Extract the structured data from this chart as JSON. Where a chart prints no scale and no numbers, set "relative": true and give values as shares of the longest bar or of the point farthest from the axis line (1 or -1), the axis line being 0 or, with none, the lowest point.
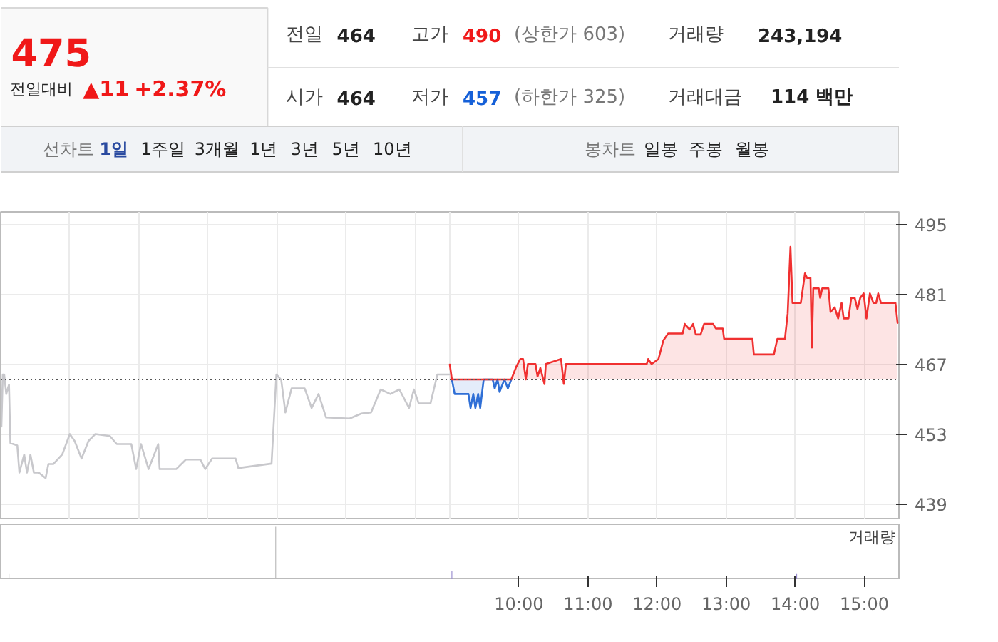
{
  "chart_data": [
    {
      "type": "line",
      "annotations": [
        "475",
        "전일대비",
        "▲11",
        "+2.37%",
        "전일",
        "464",
        "고가",
        "490",
        "(상한가 603)",
        "거래량",
        "243,194",
        "시가",
        "464",
        "저가",
        "457",
        "(하한가 325)",
        "거래대금",
        "114 백만",
        "선차트",
        "1일",
        "1주일",
        "3개월",
        "1년",
        "3년",
        "5년",
        "10년",
        "봉차트",
        "일봉",
        "주봉",
        "월봉"
      ],
      "xlim": [
        2.5,
        15.5
      ],
      "ylim": [
        436.2,
        497.5
      ],
      "yticks": [
        439,
        453,
        467,
        481,
        495
      ],
      "xticks": [
        {
          "value": 3.5,
          "label": null
        },
        {
          "value": 4.5,
          "label": null
        },
        {
          "value": 5.5,
          "label": null
        },
        {
          "value": 6.5,
          "label": null
        },
        {
          "value": 7.5,
          "label": null
        },
        {
          "value": 8.5,
          "label": null
        },
        {
          "value": 9,
          "label": null
        },
        {
          "value": 10,
          "label": null
        },
        {
          "value": 11,
          "label": null
        },
        {
          "value": 12,
          "label": null
        },
        {
          "value": 13,
          "label": null
        },
        {
          "value": 14,
          "label": null
        },
        {
          "value": 15,
          "label": null
        }
      ],
      "grid": true,
      "tick_labels": "y",
      "ref_lines": [
        {
          "axis": "y",
          "value": 464,
          "color": "#555555",
          "line_style": "dotted"
        }
      ],
      "series": [
        {
          "type": "line",
          "color": "#c8c8cc",
          "x": [
            2.51,
            2.53,
            2.55,
            2.58,
            2.62,
            2.64,
            2.74,
            2.77,
            2.84,
            2.88,
            2.93,
            2.98,
            3.05,
            3.15,
            3.19,
            3.26,
            3.39,
            3.5,
            3.57,
            3.67,
            3.77,
            3.87,
            4.08,
            4.18,
            4.39,
            4.46,
            4.53,
            4.64,
            4.78,
            4.8,
            5.04,
            5.18,
            5.39,
            5.46,
            5.56,
            5.9,
            5.94,
            6.42,
            6.49,
            6.56,
            6.62,
            6.71,
            6.9,
            7.0,
            7.1,
            7.21,
            7.55,
            7.72,
            7.86,
            8.0,
            8.14,
            8.27,
            8.41,
            8.48,
            8.55,
            8.72,
            8.82,
            8.99
          ],
          "values": [
            454.6,
            465.0,
            465.0,
            461.1,
            463.0,
            451.3,
            450.8,
            445.4,
            449.0,
            445.4,
            449.0,
            445.4,
            445.4,
            444.3,
            447.1,
            447.1,
            449.0,
            453.1,
            451.7,
            448.2,
            451.7,
            453.1,
            452.7,
            451.1,
            451.1,
            446.1,
            451.1,
            446.1,
            451.1,
            446.1,
            446.1,
            448.0,
            448.0,
            446.1,
            448.2,
            448.2,
            446.3,
            447.2,
            465.0,
            463.9,
            457.4,
            462.2,
            462.2,
            458.3,
            461.1,
            456.4,
            456.2,
            457.2,
            457.4,
            462.0,
            461.1,
            462.0,
            458.3,
            462.0,
            459.2,
            459.2,
            465.0,
            465.0
          ]
        },
        {
          "type": "area",
          "color": "#2f6fd6",
          "x": [
            9.03,
            9.07,
            9.27,
            9.3,
            9.34,
            9.37,
            9.41,
            9.44,
            9.49,
            9.62,
            9.65,
            9.69,
            9.72,
            9.79,
            9.84,
            9.89
          ],
          "values": [
            464,
            461.1,
            461.1,
            458.3,
            461.1,
            458.3,
            461.1,
            458.3,
            464,
            464,
            462.2,
            464,
            461.5,
            464,
            462.2,
            464
          ]
        },
        {
          "type": "area",
          "color": "#f03030",
          "x": [
            9.0,
            9.03,
            9.89,
            9.96,
            10.02,
            10.06,
            10.1,
            10.13,
            10.24,
            10.27,
            10.31,
            10.37,
            10.39,
            10.61,
            10.65,
            10.68,
            11.85,
            11.87,
            11.92,
            12.02,
            12.09,
            12.16,
            12.37,
            12.4,
            12.47,
            12.52,
            12.56,
            12.63,
            12.68,
            12.81,
            12.85,
            12.95,
            12.97,
            13.38,
            13.4,
            13.69,
            13.74,
            13.85,
            13.89,
            13.93,
            13.96,
            14.08,
            14.14,
            14.17,
            14.22,
            14.24,
            14.26,
            14.34,
            14.36,
            14.39,
            14.48,
            14.51,
            14.57,
            14.62,
            14.67,
            14.7,
            14.77,
            14.81,
            14.86,
            14.9,
            14.94,
            14.99,
            15.03,
            15.08,
            15.13,
            15.17,
            15.2,
            15.24,
            15.45,
            15.48
          ],
          "values": [
            467.0,
            464,
            464,
            466.5,
            468.1,
            468.1,
            464,
            467.1,
            467.1,
            464.6,
            466.3,
            463.1,
            467.1,
            468.1,
            463.1,
            467.1,
            467.1,
            468.1,
            467.1,
            468.1,
            471.8,
            473.2,
            473.2,
            475.1,
            474.0,
            475.1,
            473.0,
            473.0,
            475.1,
            475.1,
            474.2,
            474.2,
            472.1,
            472.1,
            469.0,
            469.0,
            472.1,
            472.1,
            477.2,
            490.5,
            479.3,
            479.3,
            485.2,
            484.3,
            484.3,
            470.4,
            482.2,
            482.2,
            480.3,
            482.2,
            482.2,
            477.5,
            478.4,
            476.2,
            479.3,
            476.2,
            476.2,
            480.3,
            480.3,
            478.1,
            480.3,
            481.2,
            476.2,
            481.2,
            479.3,
            479.3,
            481.2,
            479.3,
            479.3,
            475.3
          ]
        }
      ]
    },
    {
      "type": "bar",
      "relative": true,
      "xlim": [
        2.5,
        15.5
      ],
      "tick_labels": "x",
      "xticks": [
        {
          "value": 10,
          "label": "10:00"
        },
        {
          "value": 11,
          "label": "11:00"
        },
        {
          "value": 12,
          "label": "12:00"
        },
        {
          "value": 13,
          "label": "13:00"
        },
        {
          "value": 14,
          "label": "14:00"
        },
        {
          "value": 15,
          "label": "15:00"
        }
      ],
      "legend": "top right",
      "series": [
        {
          "name": "거래량",
          "color": "#9b8fd0",
          "x": [
            2.62,
            6.48,
            9.03,
            14.02
          ],
          "values": [
            0.1,
            1,
            0.15,
            0.1
          ],
          "colors": [
            "#bbbbbb",
            "#bbbbbb",
            "#9b8fd0",
            "#9b8fd0"
          ]
        }
      ]
    }
  ]
}
